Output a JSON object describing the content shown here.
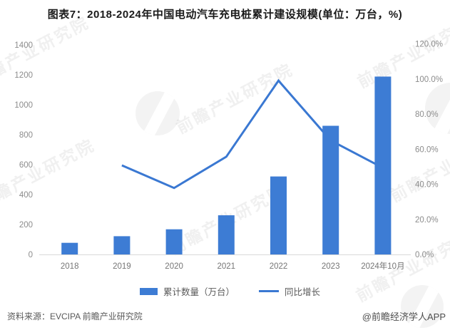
{
  "title": "图表7：2018-2024年中国电动汽车充电桩累计建设规模(单位：万台，%)",
  "chart_data": {
    "type": "bar",
    "subtype": "combo-bar-line-dual-axis",
    "categories": [
      "2018",
      "2019",
      "2020",
      "2021",
      "2022",
      "2023",
      "2024年10月"
    ],
    "series": [
      {
        "name": "累计数量（万台）",
        "type": "bar",
        "axis": "left",
        "values": [
          77.7,
          121.9,
          168.1,
          261.7,
          521.0,
          859.6,
          1188.4
        ]
      },
      {
        "name": "同比增长",
        "type": "line",
        "axis": "right",
        "values": [
          null,
          50.8,
          37.9,
          55.7,
          99.1,
          65.0,
          49.4
        ]
      }
    ],
    "left_axis": {
      "min": 0,
      "max": 1400,
      "ticks": [
        "0",
        "200",
        "400",
        "600",
        "800",
        "1000",
        "1200",
        "1400"
      ]
    },
    "right_axis": {
      "min": 0,
      "max": 120,
      "ticks": [
        "0.0%",
        "20.0%",
        "40.0%",
        "60.0%",
        "80.0%",
        "100.0%",
        "120.0%"
      ]
    },
    "grid": false,
    "legend_position": "bottom",
    "colors": {
      "bar": "#3D7CD4",
      "line": "#3A78D2",
      "axis_line": "#d9d9d9"
    }
  },
  "legend": {
    "bar_label": "累计数量（万台）",
    "line_label": "同比增长"
  },
  "footer": {
    "source": "资料来源：EVCIPA 前瞻产业研究院",
    "credit": "@前瞻经济学人APP"
  },
  "watermark": {
    "text": "前瞻产业研究院",
    "logo": "qianzhan-logo"
  }
}
